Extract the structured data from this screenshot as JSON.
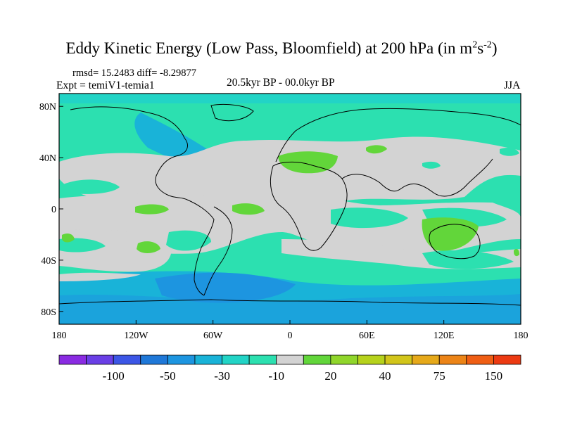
{
  "title": {
    "main": "Eddy Kinetic Energy (Low Pass, Bloomfield) at 200 hPa (in m",
    "sup1": "2",
    "mid": "s",
    "sup2": "-2",
    "close": ")"
  },
  "stats": "rmsd= 15.2483 diff= -8.29877",
  "expt": "Expt = temiV1-temia1",
  "period": "20.5kyr BP - 00.0kyr BP",
  "season": "JJA",
  "map": {
    "y_ticks": [
      "80N",
      "40N",
      "0",
      "40S",
      "80S"
    ],
    "y_tick_values": [
      80,
      40,
      0,
      -40,
      -80
    ],
    "x_ticks": [
      "180",
      "120W",
      "60W",
      "0",
      "60E",
      "120E",
      "180"
    ],
    "x_tick_values": [
      -180,
      -120,
      -60,
      0,
      60,
      120,
      180
    ],
    "lat_range": [
      -90,
      90
    ],
    "lon_range": [
      -180,
      180
    ]
  },
  "colorbar": {
    "colors": [
      "#8a2be2",
      "#6a3fe6",
      "#3c56e6",
      "#1f78d8",
      "#1d95e0",
      "#19b3d8",
      "#22d4c6",
      "#2ce0b0",
      "#d3d3d3",
      "#62d63a",
      "#90d62b",
      "#b6d21c",
      "#d2c51a",
      "#e6a91a",
      "#ec8417",
      "#ef5e14",
      "#ec3a12"
    ],
    "labels": [
      "-100",
      "-50",
      "-30",
      "-10",
      "20",
      "40",
      "75",
      "150"
    ],
    "label_boundaries": [
      2,
      4,
      6,
      8,
      10,
      12,
      14,
      16
    ]
  },
  "field_colors": {
    "neutral": "#d3d3d3",
    "teal": "#2ce0b0",
    "cyan": "#22d4c6",
    "lightblue": "#19b3d8",
    "blue": "#1d95e0",
    "green": "#62d63a",
    "lightgreen": "#90d62b"
  }
}
